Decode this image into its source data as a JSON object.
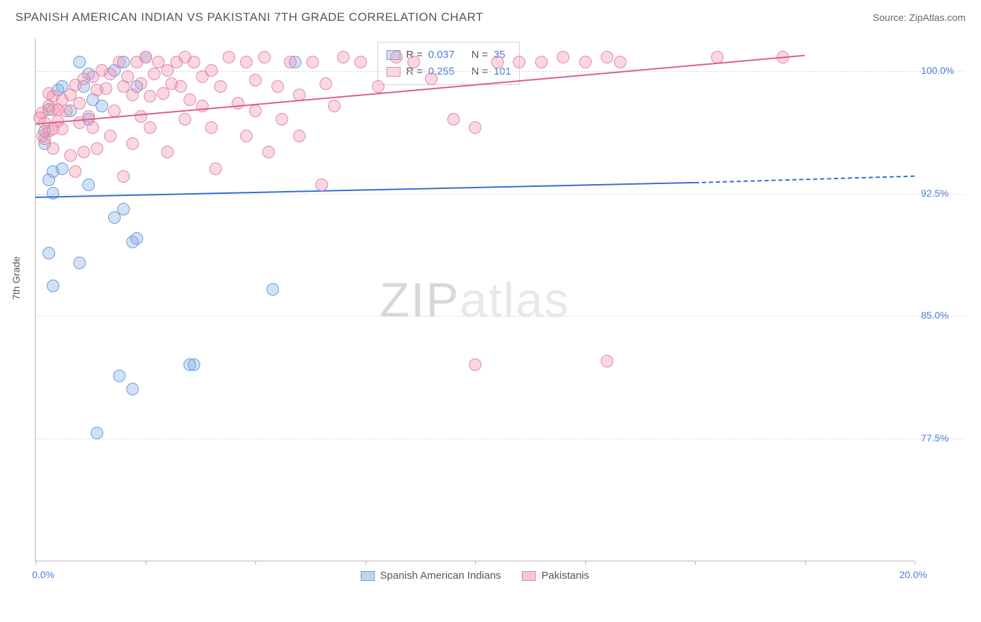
{
  "header": {
    "title": "SPANISH AMERICAN INDIAN VS PAKISTANI 7TH GRADE CORRELATION CHART",
    "source": "Source: ZipAtlas.com"
  },
  "chart": {
    "type": "scatter",
    "y_label": "7th Grade",
    "background_color": "#ffffff",
    "grid_color": "#dcdcdc",
    "axis_color": "#b8b8b8",
    "marker_radius_base": 9,
    "marker_border_width": 1.5,
    "xlim": [
      0,
      20
    ],
    "ylim": [
      70,
      102
    ],
    "x_ticks": [
      0,
      2.5,
      5,
      7.5,
      10,
      12.5,
      15,
      17.5,
      20
    ],
    "x_tick_labels": {
      "0": "0.0%",
      "20": "20.0%"
    },
    "y_ticks": [
      77.5,
      85.0,
      92.5,
      100.0
    ],
    "y_tick_labels": [
      "77.5%",
      "85.0%",
      "92.5%",
      "100.0%"
    ],
    "watermark": {
      "bold": "ZIP",
      "light": "atlas"
    },
    "series": [
      {
        "name": "Spanish American Indians",
        "label": "Spanish American Indians",
        "fill": "rgba(130,170,230,0.35)",
        "stroke": "#6a9cd8",
        "line_color": "#2f6fd4",
        "stats": {
          "R": "0.037",
          "N": "35"
        },
        "trend": {
          "x1": 0,
          "y1": 92.3,
          "x2_solid": 15,
          "y2_solid": 93.2,
          "x2_dash": 20,
          "y2_dash": 93.6
        },
        "points": [
          [
            0.2,
            96.3
          ],
          [
            0.3,
            97.6
          ],
          [
            0.3,
            93.3
          ],
          [
            0.4,
            92.5
          ],
          [
            0.5,
            98.8
          ],
          [
            0.6,
            99.0
          ],
          [
            0.8,
            97.5
          ],
          [
            1.0,
            100.5
          ],
          [
            1.1,
            99.0
          ],
          [
            1.2,
            99.8
          ],
          [
            1.3,
            98.2
          ],
          [
            1.5,
            97.8
          ],
          [
            1.8,
            100.0
          ],
          [
            2.0,
            100.5
          ],
          [
            2.3,
            99.0
          ],
          [
            2.5,
            100.8
          ],
          [
            0.4,
            93.8
          ],
          [
            0.3,
            88.8
          ],
          [
            1.2,
            93.0
          ],
          [
            1.8,
            91.0
          ],
          [
            2.0,
            91.5
          ],
          [
            2.2,
            89.5
          ],
          [
            2.3,
            89.7
          ],
          [
            1.0,
            88.2
          ],
          [
            0.4,
            86.8
          ],
          [
            5.9,
            100.5
          ],
          [
            3.5,
            82.0
          ],
          [
            3.6,
            82.0
          ],
          [
            2.2,
            80.5
          ],
          [
            1.9,
            81.3
          ],
          [
            1.4,
            77.8
          ],
          [
            5.4,
            86.6
          ],
          [
            0.6,
            94.0
          ],
          [
            1.2,
            97.0
          ],
          [
            0.2,
            95.5
          ]
        ]
      },
      {
        "name": "Pakistanis",
        "label": "Pakistanis",
        "fill": "rgba(240,140,170,0.35)",
        "stroke": "#e089a8",
        "line_color": "#e05a8a",
        "stats": {
          "R": "0.255",
          "N": "101"
        },
        "trend": {
          "x1": 0,
          "y1": 96.8,
          "x2_solid": 17.5,
          "y2_solid": 101.0,
          "x2_dash": 17.5,
          "y2_dash": 101.0
        },
        "points": [
          [
            0.1,
            97.1
          ],
          [
            0.2,
            95.8
          ],
          [
            0.3,
            96.3
          ],
          [
            0.3,
            97.8
          ],
          [
            0.4,
            96.4
          ],
          [
            0.4,
            95.2
          ],
          [
            0.5,
            97.6
          ],
          [
            0.5,
            96.9
          ],
          [
            0.6,
            96.4
          ],
          [
            0.6,
            98.2
          ],
          [
            0.7,
            97.5
          ],
          [
            0.8,
            94.8
          ],
          [
            0.8,
            98.5
          ],
          [
            0.9,
            99.1
          ],
          [
            1.0,
            96.8
          ],
          [
            1.0,
            98.0
          ],
          [
            1.1,
            99.5
          ],
          [
            1.2,
            97.2
          ],
          [
            1.3,
            99.6
          ],
          [
            1.3,
            96.5
          ],
          [
            1.4,
            98.8
          ],
          [
            1.5,
            100.0
          ],
          [
            1.6,
            98.9
          ],
          [
            1.7,
            99.8
          ],
          [
            1.8,
            97.5
          ],
          [
            1.9,
            100.5
          ],
          [
            2.0,
            99.0
          ],
          [
            2.1,
            99.6
          ],
          [
            2.2,
            98.5
          ],
          [
            2.3,
            100.5
          ],
          [
            2.4,
            99.2
          ],
          [
            2.5,
            100.8
          ],
          [
            2.6,
            98.4
          ],
          [
            2.7,
            99.8
          ],
          [
            2.8,
            100.5
          ],
          [
            2.9,
            98.6
          ],
          [
            3.0,
            100.0
          ],
          [
            3.1,
            99.2
          ],
          [
            3.2,
            100.5
          ],
          [
            3.3,
            99.0
          ],
          [
            3.4,
            100.8
          ],
          [
            3.5,
            98.2
          ],
          [
            3.6,
            100.5
          ],
          [
            3.8,
            99.6
          ],
          [
            4.0,
            100.0
          ],
          [
            4.2,
            99.0
          ],
          [
            4.4,
            100.8
          ],
          [
            4.6,
            98.0
          ],
          [
            4.8,
            100.5
          ],
          [
            5.0,
            99.4
          ],
          [
            5.2,
            100.8
          ],
          [
            5.5,
            99.0
          ],
          [
            5.8,
            100.5
          ],
          [
            6.0,
            98.5
          ],
          [
            6.3,
            100.5
          ],
          [
            6.6,
            99.2
          ],
          [
            7.0,
            100.8
          ],
          [
            7.4,
            100.5
          ],
          [
            7.8,
            99.0
          ],
          [
            8.2,
            100.8
          ],
          [
            8.6,
            100.5
          ],
          [
            9.0,
            99.5
          ],
          [
            9.5,
            97.0
          ],
          [
            6.0,
            96.0
          ],
          [
            6.5,
            93.0
          ],
          [
            10.0,
            96.5
          ],
          [
            10.5,
            100.5
          ],
          [
            11.0,
            100.5
          ],
          [
            11.5,
            100.5
          ],
          [
            12.0,
            100.8
          ],
          [
            12.5,
            100.5
          ],
          [
            13.0,
            100.8
          ],
          [
            13.3,
            100.5
          ],
          [
            15.5,
            100.8
          ],
          [
            17.0,
            100.8
          ],
          [
            2.2,
            95.5
          ],
          [
            0.4,
            97.6
          ],
          [
            0.3,
            98.6
          ],
          [
            1.1,
            95.0
          ],
          [
            1.7,
            96.0
          ],
          [
            1.4,
            95.2
          ],
          [
            2.6,
            96.5
          ],
          [
            3.0,
            95.0
          ],
          [
            3.4,
            97.0
          ],
          [
            4.0,
            96.5
          ],
          [
            4.1,
            94.0
          ],
          [
            4.8,
            96.0
          ],
          [
            5.3,
            95.0
          ],
          [
            2.0,
            93.5
          ],
          [
            0.9,
            93.8
          ],
          [
            10.0,
            82.0
          ],
          [
            13.0,
            82.2
          ],
          [
            2.4,
            97.2
          ],
          [
            3.8,
            97.8
          ],
          [
            5.0,
            97.5
          ],
          [
            5.6,
            97.0
          ],
          [
            6.8,
            97.8
          ],
          [
            0.2,
            96.8
          ],
          [
            0.15,
            97.4
          ],
          [
            0.16,
            96.0
          ],
          [
            0.4,
            98.4
          ]
        ]
      }
    ],
    "bottom_legend": [
      {
        "swatch_fill": "rgba(130,170,230,0.5)",
        "swatch_stroke": "#6a9cd8",
        "label": "Spanish American Indians"
      },
      {
        "swatch_fill": "rgba(240,140,170,0.5)",
        "swatch_stroke": "#e089a8",
        "label": "Pakistanis"
      }
    ]
  }
}
